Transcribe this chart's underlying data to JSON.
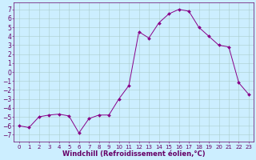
{
  "x": [
    0,
    1,
    2,
    3,
    4,
    5,
    6,
    7,
    8,
    9,
    10,
    11,
    12,
    13,
    14,
    15,
    16,
    17,
    18,
    19,
    20,
    21,
    22,
    23
  ],
  "y": [
    -6.0,
    -6.2,
    -5.0,
    -4.8,
    -4.7,
    -4.9,
    -6.8,
    -5.2,
    -4.8,
    -4.8,
    -3.0,
    -1.5,
    4.5,
    3.8,
    5.5,
    6.5,
    7.0,
    6.8,
    5.0,
    4.0,
    3.0,
    2.8,
    -1.2,
    -2.5
  ],
  "line_color": "#880088",
  "marker": "D",
  "marker_size": 2.0,
  "bg_color": "#cceeff",
  "grid_color": "#aacccc",
  "spine_color": "#660066",
  "xlabel": "Windchill (Refroidissement éolien,°C)",
  "xlabel_fontsize": 6.0,
  "xlabel_color": "#660066",
  "ylabel_color": "#660066",
  "tick_color": "#660066",
  "tick_labelsize": 5.0,
  "ylim": [
    -7.8,
    7.8
  ],
  "yticks": [
    -7,
    -6,
    -5,
    -4,
    -3,
    -2,
    -1,
    0,
    1,
    2,
    3,
    4,
    5,
    6,
    7
  ],
  "xticks": [
    0,
    1,
    2,
    3,
    4,
    5,
    6,
    7,
    8,
    9,
    10,
    11,
    12,
    13,
    14,
    15,
    16,
    17,
    18,
    19,
    20,
    21,
    22,
    23
  ],
  "figsize": [
    3.2,
    2.0
  ],
  "dpi": 100
}
